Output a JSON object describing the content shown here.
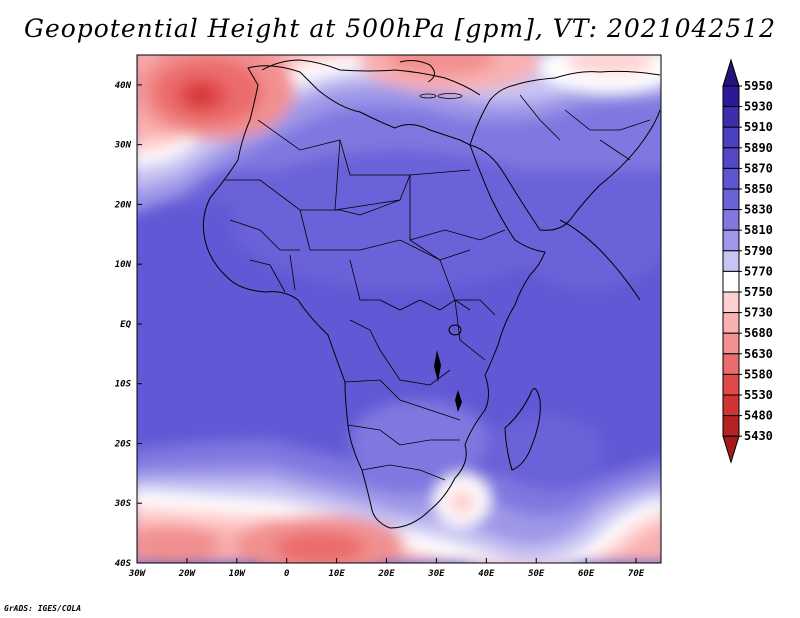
{
  "title": "Geopotential Height at 500hPa [gpm], VT: 2021042512",
  "credit": "GrADS: IGES/COLA",
  "map": {
    "lon_range": [
      -30,
      75
    ],
    "lat_range": [
      -40,
      45
    ],
    "x_ticks": [
      "30W",
      "20W",
      "10W",
      "0",
      "10E",
      "20E",
      "30E",
      "40E",
      "50E",
      "60E",
      "70E"
    ],
    "y_ticks": [
      "40N",
      "30N",
      "20N",
      "10N",
      "EQ",
      "10S",
      "20S",
      "30S",
      "40S"
    ]
  },
  "colorbar": {
    "levels": [
      "5950",
      "5930",
      "5910",
      "5890",
      "5870",
      "5850",
      "5830",
      "5810",
      "5790",
      "5770",
      "5750",
      "5730",
      "5680",
      "5630",
      "5580",
      "5530",
      "5480",
      "5430"
    ],
    "colors": [
      "#2a1a99",
      "#3b2fb0",
      "#4a40c0",
      "#5548c8",
      "#5f55d0",
      "#6a62d8",
      "#8078e0",
      "#9f98e8",
      "#c9c5f3",
      "#ffffff",
      "#ffd0d0",
      "#f9b0b0",
      "#f29090",
      "#eb6c6c",
      "#e24a4a",
      "#d23434",
      "#b52222"
    ],
    "top_arrow_color": "#24127e",
    "bottom_arrow_color": "#a81818"
  }
}
